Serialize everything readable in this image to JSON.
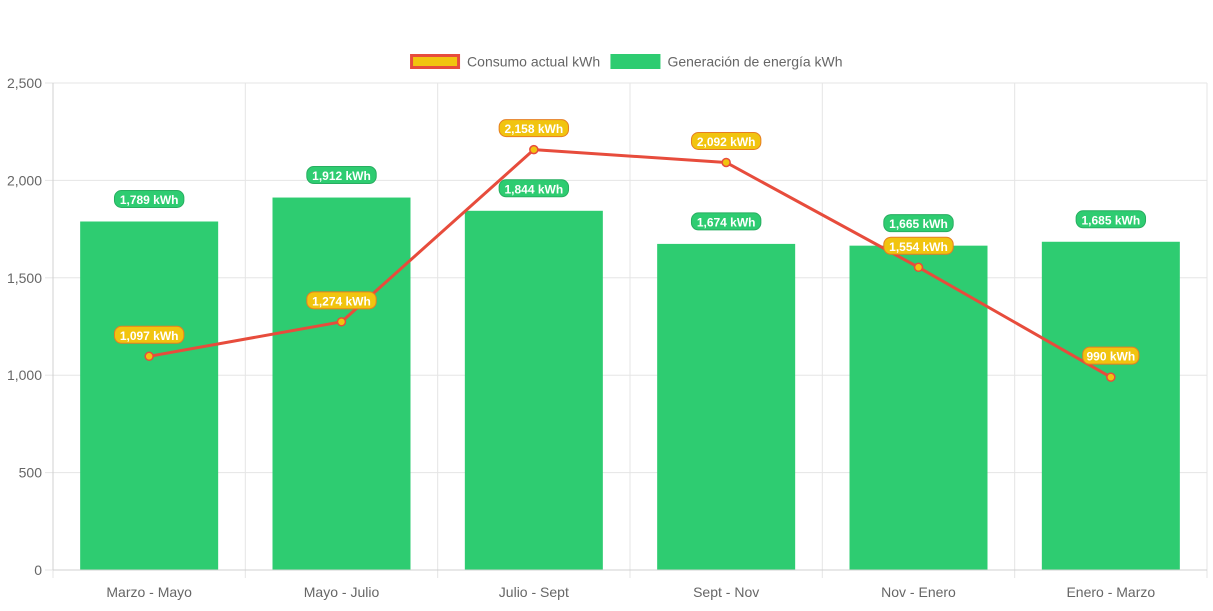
{
  "chart_data": {
    "type": "bar",
    "categories": [
      "Marzo - Mayo",
      "Mayo - Julio",
      "Julio - Sept",
      "Sept - Nov",
      "Nov - Enero",
      "Enero - Marzo"
    ],
    "series": [
      {
        "name": "Consumo actual kWh",
        "render": "line",
        "values": [
          1097,
          1274,
          2158,
          2092,
          1554,
          990
        ],
        "labels": [
          "1,097 kWh",
          "1,274 kWh",
          "2,158 kWh",
          "2,092 kWh",
          "1,554 kWh",
          "990 kWh"
        ],
        "color": "#e74c3c",
        "fill_color": "#f1c40f",
        "label_bg": "#f1c40f",
        "label_border": "#e67e22"
      },
      {
        "name": "Generación de energía kWh",
        "render": "bar",
        "values": [
          1789,
          1912,
          1844,
          1674,
          1665,
          1685
        ],
        "labels": [
          "1,789 kWh",
          "1,912 kWh",
          "1,844 kWh",
          "1,674 kWh",
          "1,665 kWh",
          "1,685 kWh"
        ],
        "color": "#2ecc71",
        "label_bg": "#2ecc71",
        "label_border": "#27ae60"
      }
    ],
    "y_ticks": [
      "0",
      "500",
      "1,000",
      "1,500",
      "2,000",
      "2,500"
    ],
    "y_tick_values": [
      0,
      500,
      1000,
      1500,
      2000,
      2500
    ],
    "ylim": [
      0,
      2500
    ],
    "grid": true,
    "legend": "top-center",
    "title": "",
    "xlabel": "",
    "ylabel": ""
  }
}
